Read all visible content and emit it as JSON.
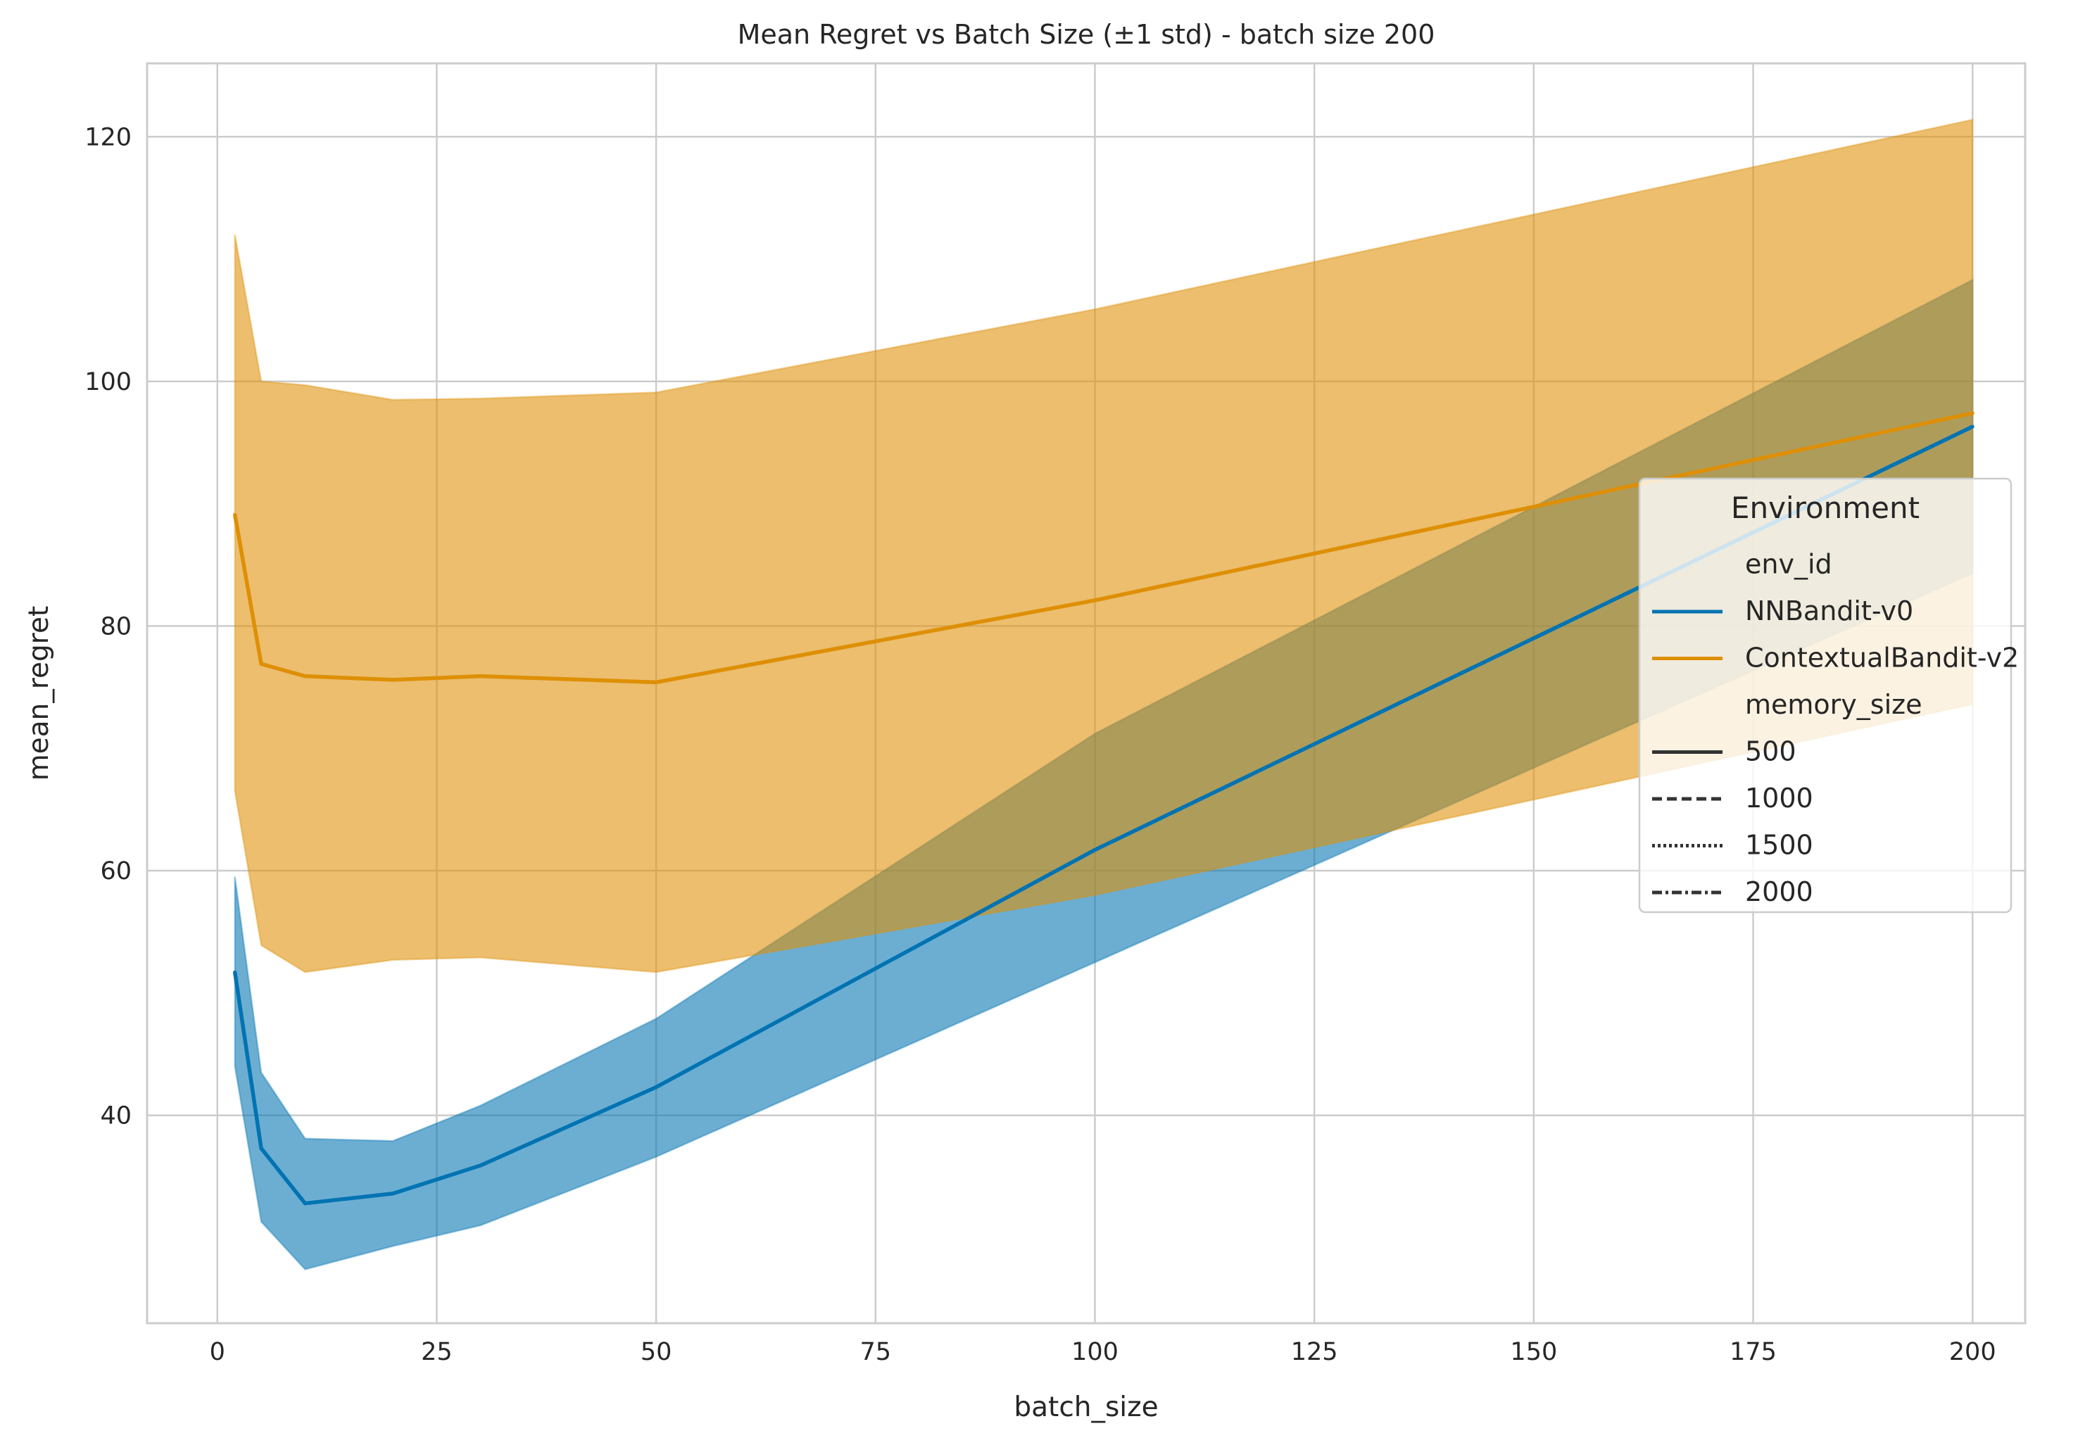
{
  "chart_data": {
    "type": "line",
    "title": "Mean Regret vs Batch Size (±1 std) - batch size 200",
    "xlabel": "batch_size",
    "ylabel": "mean_regret",
    "xlim": [
      -8,
      206
    ],
    "ylim": [
      23,
      126
    ],
    "xticks": [
      0,
      25,
      50,
      75,
      100,
      125,
      150,
      175,
      200
    ],
    "yticks": [
      40,
      60,
      80,
      100,
      120
    ],
    "grid": true,
    "legend": {
      "title": "Environment",
      "placement": "right",
      "hue_title": "env_id",
      "hue_entries": [
        {
          "name": "NNBandit-v0",
          "color": "#0173b2"
        },
        {
          "name": "ContextualBandit-v2",
          "color": "#de8f05"
        }
      ],
      "style_title": "memory_size",
      "style_entries": [
        {
          "name": "500",
          "dash": "solid"
        },
        {
          "name": "1000",
          "dash": "dashed"
        },
        {
          "name": "1500",
          "dash": "dotted"
        },
        {
          "name": "2000",
          "dash": "dashdot"
        }
      ]
    },
    "series": [
      {
        "name": "NNBandit-v0",
        "color": "#0173b2",
        "x": [
          2,
          5,
          10,
          20,
          30,
          50,
          100,
          200
        ],
        "mean": [
          51.7,
          37.3,
          32.8,
          33.6,
          35.9,
          42.3,
          61.7,
          96.3
        ],
        "upper": [
          59.5,
          43.5,
          38.1,
          37.9,
          40.8,
          47.9,
          71.2,
          108.3
        ],
        "lower": [
          44.0,
          31.3,
          27.4,
          29.3,
          31.0,
          36.6,
          52.5,
          84.3
        ]
      },
      {
        "name": "ContextualBandit-v2",
        "color": "#de8f05",
        "x": [
          2,
          5,
          10,
          20,
          30,
          50,
          100,
          200
        ],
        "mean": [
          89.1,
          76.9,
          75.9,
          75.6,
          75.9,
          75.4,
          82.1,
          97.4
        ],
        "upper": [
          112.0,
          100.0,
          99.7,
          98.5,
          98.6,
          99.1,
          105.9,
          121.4
        ],
        "lower": [
          66.5,
          53.9,
          51.7,
          52.7,
          52.9,
          51.7,
          58.0,
          73.6
        ]
      }
    ]
  }
}
